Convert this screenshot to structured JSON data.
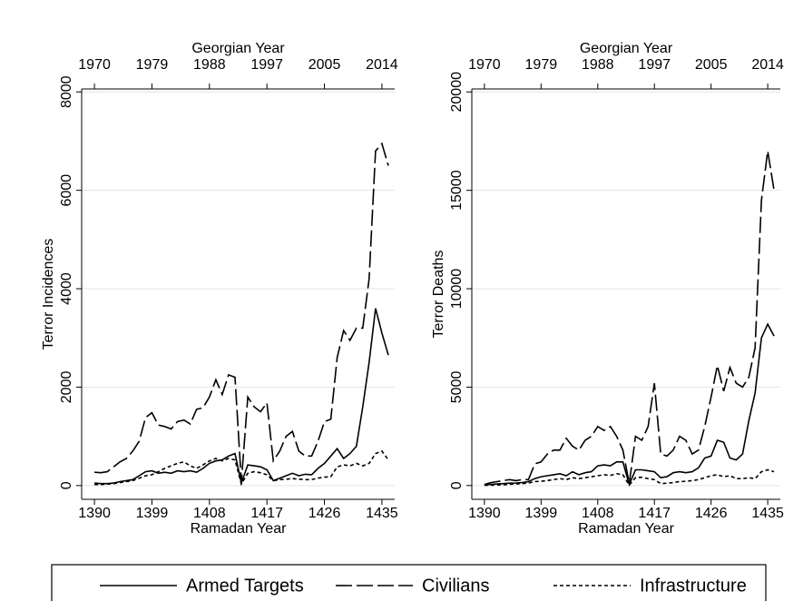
{
  "chart_data": [
    {
      "type": "line",
      "xlabel": "Ramadan Year",
      "x2label": "Georgian Year",
      "ylabel": "Terror Incidences",
      "x": [
        1390,
        1391,
        1392,
        1393,
        1394,
        1395,
        1396,
        1397,
        1398,
        1399,
        1400,
        1401,
        1402,
        1403,
        1404,
        1405,
        1406,
        1407,
        1408,
        1409,
        1410,
        1411,
        1412,
        1413,
        1414,
        1415,
        1416,
        1417,
        1418,
        1419,
        1420,
        1421,
        1422,
        1423,
        1424,
        1425,
        1426,
        1427,
        1428,
        1429,
        1430,
        1431,
        1432,
        1433,
        1434,
        1435,
        1436
      ],
      "xlim": [
        1388,
        1437
      ],
      "xticks": [
        1390,
        1399,
        1408,
        1417,
        1426,
        1435
      ],
      "x2ticks": [
        {
          "value": 1390,
          "label": "1970"
        },
        {
          "value": 1399,
          "label": "1979"
        },
        {
          "value": 1408,
          "label": "1988"
        },
        {
          "value": 1417,
          "label": "1997"
        },
        {
          "value": 1426,
          "label": "2005"
        },
        {
          "value": 1435,
          "label": "2014"
        }
      ],
      "ylim": [
        -280,
        8060
      ],
      "yticks": [
        0,
        2000,
        4000,
        6000,
        8000
      ],
      "grid": true,
      "series": [
        {
          "name": "Armed Targets",
          "color": "#000000",
          "dash": "solid",
          "values": [
            50,
            40,
            40,
            50,
            80,
            100,
            120,
            200,
            280,
            300,
            250,
            270,
            250,
            300,
            280,
            300,
            270,
            350,
            450,
            500,
            520,
            600,
            650,
            50,
            420,
            400,
            380,
            320,
            100,
            150,
            200,
            250,
            200,
            230,
            220,
            350,
            450,
            600,
            750,
            550,
            650,
            800,
            1600,
            2500,
            3600,
            3100,
            2650
          ]
        },
        {
          "name": "Civilians",
          "color": "#000000",
          "dash": "long",
          "values": [
            270,
            260,
            280,
            380,
            480,
            550,
            700,
            900,
            1380,
            1480,
            1230,
            1200,
            1150,
            1300,
            1330,
            1250,
            1550,
            1580,
            1800,
            2150,
            1850,
            2250,
            2200,
            80,
            1800,
            1600,
            1500,
            1680,
            500,
            700,
            1000,
            1100,
            700,
            600,
            600,
            900,
            1300,
            1350,
            2600,
            3150,
            2950,
            3200,
            3200,
            4200,
            6800,
            6950,
            6500
          ]
        },
        {
          "name": "Infrastructure",
          "color": "#000000",
          "dash": "short",
          "values": [
            20,
            20,
            30,
            40,
            60,
            80,
            100,
            150,
            200,
            220,
            280,
            350,
            400,
            450,
            480,
            400,
            350,
            420,
            500,
            550,
            500,
            550,
            520,
            30,
            250,
            280,
            260,
            220,
            100,
            120,
            130,
            140,
            130,
            120,
            120,
            150,
            170,
            180,
            380,
            420,
            400,
            450,
            400,
            450,
            650,
            700,
            520
          ]
        }
      ]
    },
    {
      "type": "line",
      "xlabel": "Ramadan Year",
      "x2label": "Georgian Year",
      "ylabel": "Terror Deaths",
      "x": [
        1390,
        1391,
        1392,
        1393,
        1394,
        1395,
        1396,
        1397,
        1398,
        1399,
        1400,
        1401,
        1402,
        1403,
        1404,
        1405,
        1406,
        1407,
        1408,
        1409,
        1410,
        1411,
        1412,
        1413,
        1414,
        1415,
        1416,
        1417,
        1418,
        1419,
        1420,
        1421,
        1422,
        1423,
        1424,
        1425,
        1426,
        1427,
        1428,
        1429,
        1430,
        1431,
        1432,
        1433,
        1434,
        1435,
        1436
      ],
      "xlim": [
        1388,
        1437
      ],
      "xticks": [
        1390,
        1399,
        1408,
        1417,
        1426,
        1435
      ],
      "x2ticks": [
        {
          "value": 1390,
          "label": "1970"
        },
        {
          "value": 1399,
          "label": "1979"
        },
        {
          "value": 1408,
          "label": "1988"
        },
        {
          "value": 1417,
          "label": "1997"
        },
        {
          "value": 1426,
          "label": "2005"
        },
        {
          "value": 1435,
          "label": "2014"
        }
      ],
      "ylim": [
        -700,
        20150
      ],
      "yticks": [
        0,
        5000,
        10000,
        15000,
        20000
      ],
      "grid": true,
      "series": [
        {
          "color": "#000000",
          "dash": "solid",
          "values": [
            30,
            60,
            80,
            100,
            120,
            130,
            150,
            200,
            350,
            450,
            500,
            550,
            600,
            500,
            700,
            550,
            650,
            700,
            1000,
            1050,
            1000,
            1200,
            1200,
            50,
            800,
            800,
            750,
            700,
            400,
            450,
            650,
            700,
            650,
            700,
            900,
            1400,
            1500,
            2300,
            2200,
            1400,
            1300,
            1600,
            3300,
            4700,
            7500,
            8200,
            7600
          ]
        },
        {
          "color": "#000000",
          "dash": "long",
          "values": [
            50,
            150,
            200,
            250,
            300,
            250,
            300,
            300,
            1100,
            1200,
            1600,
            1800,
            1800,
            2400,
            2000,
            1800,
            2300,
            2500,
            3000,
            2800,
            3000,
            2500,
            1800,
            100,
            2500,
            2300,
            3000,
            5200,
            1600,
            1500,
            1800,
            2500,
            2300,
            1600,
            1800,
            3000,
            4500,
            6100,
            4800,
            6000,
            5200,
            5000,
            5500,
            7000,
            14500,
            17000,
            15000
          ]
        },
        {
          "color": "#000000",
          "dash": "short",
          "values": [
            10,
            20,
            30,
            40,
            60,
            80,
            100,
            130,
            200,
            220,
            250,
            300,
            350,
            300,
            400,
            350,
            400,
            450,
            500,
            550,
            520,
            600,
            550,
            20,
            400,
            420,
            350,
            300,
            100,
            120,
            150,
            200,
            220,
            250,
            300,
            400,
            500,
            550,
            450,
            500,
            350,
            350,
            400,
            350,
            700,
            800,
            700
          ]
        }
      ]
    }
  ]
}
